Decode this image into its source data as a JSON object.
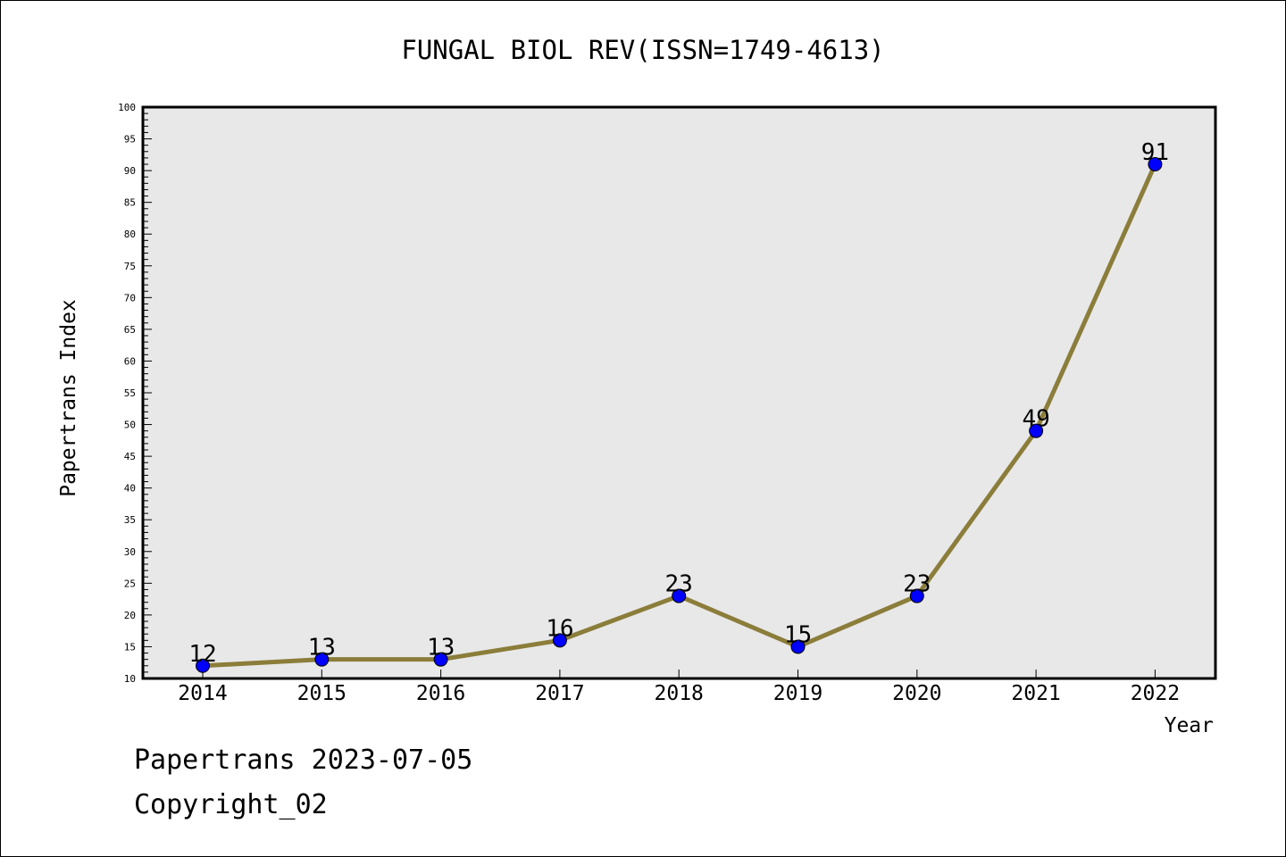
{
  "chart_data": {
    "type": "line",
    "title": "FUNGAL BIOL REV(ISSN=1749-4613)",
    "xlabel": "Year",
    "ylabel": "Papertrans Index",
    "categories": [
      "2014",
      "2015",
      "2016",
      "2017",
      "2018",
      "2019",
      "2020",
      "2021",
      "2022"
    ],
    "series": [
      {
        "values": [
          12,
          13,
          13,
          16,
          23,
          15,
          23,
          49,
          91
        ]
      }
    ],
    "ylim": [
      10,
      100
    ],
    "yticks": [
      "10",
      "15",
      "20",
      "25",
      "30",
      "35",
      "40",
      "45",
      "50",
      "55",
      "60",
      "65",
      "70",
      "75",
      "80",
      "85",
      "90",
      "95",
      "100"
    ],
    "grid": false,
    "line_color": "#8b7d3a",
    "marker_color": "#0000ff",
    "plot_background": "#e8e8e8"
  },
  "footer": {
    "line1": "Papertrans 2023-07-05",
    "line2": "Copyright_02"
  }
}
